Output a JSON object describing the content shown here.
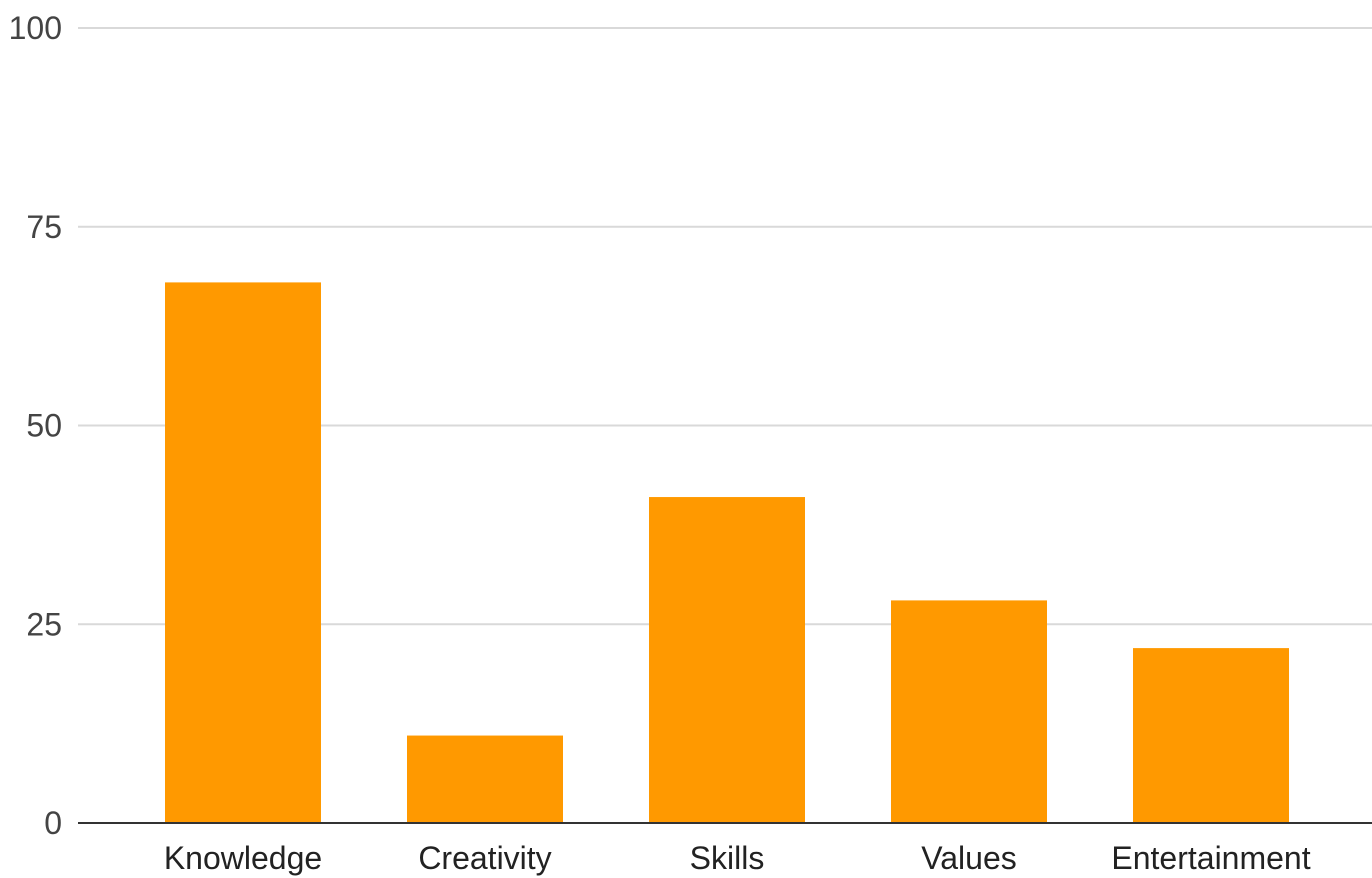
{
  "chart_data": {
    "type": "bar",
    "categories": [
      "Knowledge",
      "Creativity",
      "Skills",
      "Values",
      "Entertainment"
    ],
    "values": [
      68,
      11,
      41,
      28,
      22
    ],
    "ylim": [
      0,
      100
    ],
    "yticks": [
      0,
      25,
      50,
      75,
      100
    ],
    "grid": true,
    "colors": {
      "bar": "#ff9900"
    }
  }
}
